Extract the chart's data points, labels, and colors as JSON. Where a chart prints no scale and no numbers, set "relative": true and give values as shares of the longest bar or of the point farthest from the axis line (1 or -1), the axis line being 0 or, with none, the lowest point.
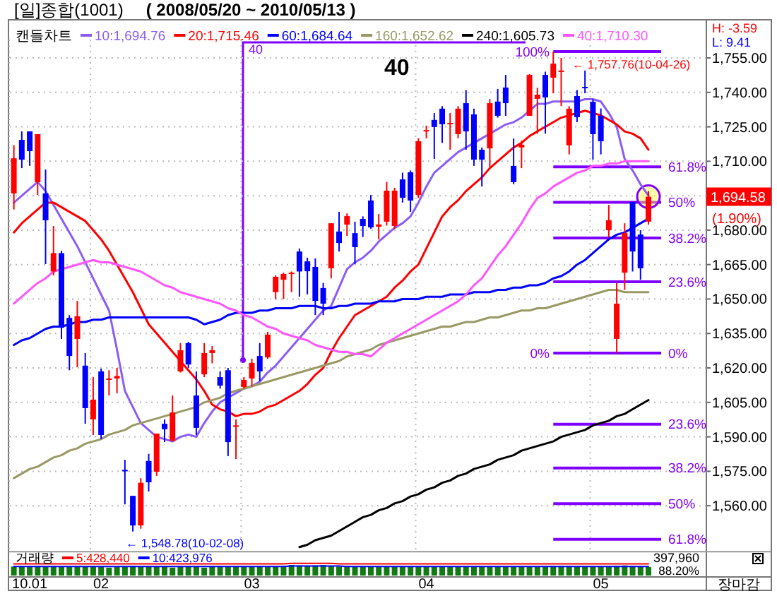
{
  "chart_data": [
    {
      "type": "candlestick",
      "title": "[일]종합(1001)",
      "subtitle": "( 2008/05/20 ~ 2010/05/13 )",
      "legend_title": "캔들차트",
      "legend": "top",
      "grid": true,
      "tick_labels": "y",
      "categories": [
        null,
        null,
        "10.01",
        null,
        null,
        null,
        null,
        null,
        null,
        null,
        null,
        "02",
        null,
        null,
        null,
        null,
        null,
        null,
        null,
        null,
        null,
        null,
        null,
        null,
        null,
        null,
        null,
        null,
        null,
        null,
        "03",
        null,
        null,
        null,
        null,
        null,
        null,
        null,
        null,
        null,
        null,
        null,
        null,
        null,
        null,
        null,
        null,
        null,
        null,
        null,
        null,
        null,
        "04",
        null,
        null,
        null,
        null,
        null,
        null,
        null,
        null,
        null,
        null,
        null,
        null,
        null,
        null,
        null,
        null,
        null,
        null,
        null,
        null,
        null,
        "05",
        null,
        null,
        null,
        null,
        null,
        null
      ],
      "ohlc": [
        [
          1696,
          1717,
          1689,
          1711.3
        ],
        [
          1719.3,
          1723,
          1707,
          1710.7
        ],
        [
          1723,
          1723,
          1708,
          1714.4
        ],
        [
          1700.9,
          1721.8,
          1695.3,
          1721.8
        ],
        [
          1696,
          1706.4,
          1665.2,
          1684.3
        ],
        [
          1662,
          1681.8,
          1660.3,
          1670
        ],
        [
          1670,
          1671,
          1632.6,
          1637.5
        ],
        [
          1641.8,
          1643,
          1619,
          1625.2
        ],
        [
          1632.6,
          1649.2,
          1620.3,
          1642.5
        ],
        [
          1621,
          1626.5,
          1595.7,
          1602.5
        ],
        [
          1597.6,
          1616,
          1590.8,
          1606.2
        ],
        [
          1618.5,
          1619.7,
          1589,
          1590.8
        ],
        [
          1614.8,
          1619,
          1608,
          1615.4
        ],
        [
          1615.4,
          1620,
          1609,
          1616.5
        ],
        [
          1575.6,
          1580,
          1560.6,
          1575
        ],
        [
          1564.3,
          1564.3,
          1548.78,
          1551.4
        ],
        [
          1551.4,
          1572,
          1550,
          1570
        ],
        [
          1579.5,
          1582.6,
          1566.2,
          1570.2
        ],
        [
          1574.8,
          1591.4,
          1573,
          1591.4
        ],
        [
          1595.7,
          1597.6,
          1587.7,
          1593.3
        ],
        [
          1588.3,
          1608,
          1588,
          1600.6
        ],
        [
          1618.5,
          1630.8,
          1618,
          1627.7
        ],
        [
          1630.8,
          1631.4,
          1620,
          1621.5
        ],
        [
          1608,
          1618.5,
          1590.8,
          1593.9
        ],
        [
          1617.2,
          1630.8,
          1616,
          1626.5
        ],
        [
          1626.5,
          1629.5,
          1622,
          1627.7
        ],
        [
          1616,
          1618.5,
          1611,
          1612.3
        ],
        [
          1619,
          1620,
          1581.6,
          1587.7
        ],
        [
          1594.5,
          1597.6,
          1580.3,
          1595
        ],
        [
          1611.7,
          1616,
          1611,
          1614.8
        ],
        [
          1615.4,
          1624,
          1612,
          1622.2
        ],
        [
          1625.2,
          1630.8,
          1614.2,
          1618.5
        ],
        [
          1624.6,
          1635.7,
          1624,
          1634.5
        ],
        [
          1653,
          1660.3,
          1650,
          1659.7
        ],
        [
          1658.4,
          1661.5,
          1650,
          1660.9
        ],
        [
          1661,
          1662,
          1653,
          1661.5
        ],
        [
          1670.7,
          1672,
          1651,
          1662
        ],
        [
          1666.4,
          1668,
          1652,
          1662.1
        ],
        [
          1664,
          1667.7,
          1643,
          1649.2
        ],
        [
          1654.8,
          1657,
          1643,
          1648
        ],
        [
          1663.4,
          1683,
          1659,
          1683
        ],
        [
          1679.4,
          1688,
          1670.7,
          1674.4
        ],
        [
          1682.4,
          1687.3,
          1677.5,
          1686.1
        ],
        [
          1678.7,
          1683.7,
          1665.2,
          1672.6
        ],
        [
          1684.9,
          1686,
          1677,
          1681.8
        ],
        [
          1692.9,
          1695.3,
          1680.6,
          1681.2
        ],
        [
          1681.5,
          1687,
          1676,
          1682.5
        ],
        [
          1683.7,
          1701,
          1682,
          1697.2
        ],
        [
          1681.8,
          1698.4,
          1680.6,
          1697.2
        ],
        [
          1702.1,
          1705,
          1692,
          1694.1
        ],
        [
          1705.2,
          1706,
          1688,
          1692.9
        ],
        [
          1695.3,
          1720,
          1694,
          1718.7
        ],
        [
          1723,
          1725.5,
          1720,
          1723.6
        ],
        [
          1728,
          1731,
          1711,
          1724.9
        ],
        [
          1732.9,
          1734,
          1718,
          1726.1
        ],
        [
          1726.5,
          1731,
          1715,
          1726.7
        ],
        [
          1721.8,
          1734,
          1720,
          1732.9
        ],
        [
          1735.3,
          1741,
          1715,
          1723
        ],
        [
          1730.4,
          1732.9,
          1708,
          1710.7
        ],
        [
          1715,
          1716,
          1699,
          1710.7
        ],
        [
          1715.6,
          1737,
          1707,
          1735.3
        ],
        [
          1736,
          1741.5,
          1729,
          1729.8
        ],
        [
          1742.1,
          1747.6,
          1729.8,
          1735.3
        ],
        [
          1708,
          1719.9,
          1700,
          1700.9
        ],
        [
          1716,
          1719,
          1707,
          1717.2
        ],
        [
          1729.8,
          1748,
          1729.8,
          1747.6
        ],
        [
          1737.2,
          1742,
          1722,
          1739
        ],
        [
          1747.6,
          1749,
          1722,
          1737.8
        ],
        [
          1746.4,
          1757.76,
          1739.6,
          1752.5
        ],
        [
          1749.2,
          1755,
          1734,
          1749.5
        ],
        [
          1716.9,
          1734,
          1713,
          1732.9
        ],
        [
          1738.4,
          1741,
          1727,
          1729.2
        ],
        [
          1742.4,
          1749.5,
          1739.6,
          1742.1
        ],
        [
          1735.9,
          1737,
          1710.7,
          1721.8
        ],
        [
          1729.8,
          1733,
          1713,
          1718.7
        ],
        [
          1680,
          1691,
          1677,
          1684.3
        ],
        [
          1632.6,
          1657,
          1626.47,
          1648
        ],
        [
          1661.5,
          1683,
          1654,
          1678.7
        ],
        [
          1692.3,
          1692.3,
          1662,
          1670.7
        ],
        [
          1678.1,
          1680,
          1658.4,
          1663.4
        ],
        [
          1683.7,
          1697,
          1682.4,
          1694.58
        ]
      ],
      "ylim": [
        1540,
        1763
      ],
      "yticks": [
        {
          "value": 1560,
          "label": "1,560.00"
        },
        {
          "value": 1575,
          "label": "1,575.00"
        },
        {
          "value": 1590,
          "label": "1,590.00"
        },
        {
          "value": 1605,
          "label": "1,605.00"
        },
        {
          "value": 1620,
          "label": "1,620.00"
        },
        {
          "value": 1635,
          "label": "1,635.00"
        },
        {
          "value": 1650,
          "label": "1,650.00"
        },
        {
          "value": 1665,
          "label": "1,665.00"
        },
        {
          "value": 1680,
          "label": "1,680.00"
        },
        {
          "value": 1695,
          "label": null
        },
        {
          "value": 1710,
          "label": "1,710.00"
        },
        {
          "value": 1725,
          "label": "1,725.00"
        },
        {
          "value": 1740,
          "label": "1,740.00"
        },
        {
          "value": 1755,
          "label": "1,755.00"
        }
      ],
      "series": [
        {
          "type": "line",
          "name": "10:1,694.76",
          "color": "#8b5cf6",
          "values": [
            1692,
            1695,
            1698,
            1701,
            1697,
            1691,
            1685,
            1679,
            1673,
            1666,
            1659,
            1652,
            1645,
            1628,
            1610,
            1603,
            1596,
            1593,
            1590,
            1589,
            1588,
            1590,
            1591,
            1590,
            1596,
            1601,
            1605,
            1607,
            1609,
            1611,
            1612,
            1614,
            1618,
            1621,
            1625,
            1629,
            1633,
            1637,
            1641,
            1645,
            1647,
            1655,
            1663,
            1666,
            1668,
            1671,
            1675,
            1678,
            1681,
            1683,
            1686,
            1692,
            1699,
            1705,
            1708,
            1711,
            1714,
            1716,
            1718,
            1720,
            1722,
            1724,
            1726,
            1727,
            1729,
            1732,
            1735,
            1735,
            1736,
            1736,
            1736,
            1736,
            1737,
            1737,
            1736,
            1731,
            1725,
            1711,
            1706,
            1700,
            1695
          ]
        },
        {
          "type": "line",
          "name": "20:1,715.46",
          "color": "#ff0000",
          "values": [
            1679,
            1683,
            1686,
            1689,
            1692,
            1692,
            1690,
            1688,
            1686,
            1684,
            1680,
            1676,
            1671,
            1665,
            1659,
            1653,
            1646,
            1639,
            1635,
            1631,
            1627,
            1623,
            1619,
            1615,
            1610,
            1604,
            1602,
            1601,
            1599,
            1600,
            1600,
            1601,
            1603,
            1604,
            1606,
            1608,
            1610,
            1613,
            1617,
            1620,
            1627,
            1633,
            1638,
            1643,
            1645,
            1647,
            1649,
            1651,
            1655,
            1658,
            1662,
            1665,
            1672,
            1679,
            1686,
            1690,
            1693,
            1697,
            1700,
            1703,
            1707,
            1710,
            1713,
            1716,
            1718,
            1721,
            1723,
            1725,
            1727,
            1729,
            1730,
            1731,
            1732,
            1731,
            1730,
            1728,
            1726,
            1723,
            1722,
            1720,
            1715
          ]
        },
        {
          "type": "line",
          "name": "60:1,684.64",
          "color": "#0000ff",
          "values": [
            1630,
            1632,
            1633,
            1635,
            1637,
            1638,
            1638,
            1639,
            1640,
            1640,
            1641,
            1641,
            1642,
            1642,
            1642,
            1642,
            1642,
            1642,
            1642,
            1642,
            1642,
            1642,
            1642,
            1641,
            1639,
            1640,
            1641,
            1643,
            1644,
            1644,
            1644,
            1645,
            1645,
            1646,
            1646,
            1646,
            1647,
            1647,
            1647,
            1646,
            1646,
            1647,
            1647,
            1648,
            1648,
            1648,
            1649,
            1649,
            1649,
            1650,
            1650,
            1650,
            1651,
            1651,
            1651,
            1652,
            1652,
            1652,
            1653,
            1653,
            1653,
            1654,
            1654,
            1655,
            1655,
            1656,
            1656,
            1657,
            1659,
            1660,
            1662,
            1665,
            1667,
            1670,
            1673,
            1676,
            1678,
            1679,
            1681,
            1683,
            1685
          ]
        },
        {
          "type": "line",
          "name": "160:1,652.62",
          "color": "#999966",
          "values": [
            1572,
            1574,
            1576,
            1577,
            1579,
            1581,
            1582,
            1584,
            1585,
            1587,
            1588,
            1589,
            1591,
            1592,
            1593,
            1595,
            1596,
            1597,
            1598,
            1599,
            1600,
            1601,
            1602,
            1603,
            1605,
            1606,
            1607,
            1609,
            1610,
            1611,
            1612,
            1613,
            1614,
            1615,
            1616,
            1617,
            1618,
            1619,
            1620,
            1621,
            1622,
            1623,
            1625,
            1626,
            1627,
            1628,
            1630,
            1631,
            1632,
            1633,
            1634,
            1635,
            1636,
            1637,
            1638,
            1638,
            1639,
            1640,
            1640,
            1641,
            1642,
            1642,
            1643,
            1644,
            1645,
            1645,
            1646,
            1646,
            1647,
            1648,
            1649,
            1650,
            1651,
            1652,
            1653,
            1654,
            1654,
            1653,
            1653,
            1653,
            1653
          ]
        },
        {
          "type": "line",
          "name": "240:1,605.73",
          "color": "#000000",
          "values": [
            null,
            null,
            null,
            null,
            null,
            null,
            null,
            null,
            null,
            null,
            null,
            null,
            null,
            null,
            null,
            null,
            null,
            null,
            null,
            null,
            null,
            null,
            null,
            null,
            null,
            null,
            null,
            null,
            null,
            null,
            null,
            null,
            null,
            null,
            null,
            null,
            1542,
            1543,
            1545,
            1546,
            1547,
            1549,
            1551,
            1553,
            1555,
            1556,
            1558,
            1559,
            1561,
            1562,
            1564,
            1565,
            1567,
            1568,
            1570,
            1571,
            1573,
            1574,
            1576,
            1577,
            1578,
            1580,
            1581,
            1582,
            1584,
            1585,
            1586,
            1587,
            1588,
            1590,
            1591,
            1592,
            1593,
            1595,
            1596,
            1597,
            1599,
            1600,
            1602,
            1604,
            1606
          ]
        },
        {
          "type": "line",
          "name": "40:1,710.30",
          "color": "#ff55ff",
          "values": [
            1648,
            1651,
            1654,
            1657,
            1659,
            1662,
            1663,
            1664,
            1665,
            1666,
            1667,
            1666,
            1666,
            1665,
            1664,
            1663,
            1662,
            1660,
            1658,
            1656,
            1655,
            1653,
            1652,
            1651,
            1650,
            1649,
            1648,
            1646,
            1645,
            1643,
            1642,
            1640,
            1638,
            1637,
            1635,
            1634,
            1633,
            1632,
            1630,
            1629,
            1628,
            1627,
            1627,
            1626,
            1626,
            1625,
            1628,
            1631,
            1633,
            1635,
            1637,
            1639,
            1641,
            1643,
            1645,
            1647,
            1649,
            1652,
            1656,
            1659,
            1664,
            1669,
            1673,
            1678,
            1683,
            1689,
            1694,
            1696,
            1699,
            1701,
            1703,
            1705,
            1706,
            1708,
            1708,
            1709,
            1709,
            1710,
            1710,
            1710,
            1710
          ]
        }
      ],
      "ref_lines": [
        {
          "axis": "y",
          "value": 1757.76,
          "color": "#8000ff"
        },
        {
          "axis": "y",
          "value": 1707.6,
          "color": "#8000ff"
        },
        {
          "axis": "y",
          "value": 1692.1,
          "color": "#8000ff"
        },
        {
          "axis": "y",
          "value": 1676.6,
          "color": "#8000ff"
        },
        {
          "axis": "y",
          "value": 1657.5,
          "color": "#8000ff"
        },
        {
          "axis": "y",
          "value": 1626.47,
          "color": "#8000ff"
        },
        {
          "axis": "y",
          "value": 1595.5,
          "color": "#8000ff"
        },
        {
          "axis": "y",
          "value": 1576.4,
          "color": "#8000ff"
        },
        {
          "axis": "y",
          "value": 1560.9,
          "color": "#8000ff"
        },
        {
          "axis": "y",
          "value": 1545.4,
          "color": "#8000ff"
        }
      ],
      "annotations": [
        "40",
        "40",
        {
          "text": "← 1,757.76(10-04-26)",
          "y": 1757.76
        },
        "← 1,548.78(10-02-08)",
        "H: -3.59",
        "L: 9.41",
        "1,694.58",
        "(1.90%)",
        "100%",
        "61.8%",
        "50%",
        "38.2%",
        "23.6%",
        "0%",
        "0%",
        "23.6%",
        "38.2%",
        "50%",
        "61.8%"
      ]
    },
    {
      "type": "bar",
      "legend_title": "거래량",
      "legend": "top left",
      "relative": true,
      "tick_labels": "x",
      "color": "#127a12",
      "categories": [
        null,
        null,
        "10.01",
        null,
        null,
        null,
        null,
        null,
        null,
        null,
        null,
        "02",
        null,
        null,
        null,
        null,
        null,
        null,
        null,
        null,
        null,
        null,
        null,
        null,
        null,
        null,
        null,
        null,
        null,
        null,
        "03",
        null,
        null,
        null,
        null,
        null,
        null,
        null,
        null,
        null,
        null,
        null,
        null,
        null,
        null,
        null,
        null,
        null,
        null,
        null,
        null,
        null,
        "04",
        null,
        null,
        null,
        null,
        null,
        null,
        null,
        null,
        null,
        null,
        null,
        null,
        null,
        null,
        null,
        null,
        null,
        null,
        null,
        null,
        null,
        "05",
        null,
        null,
        null,
        null,
        null,
        null
      ],
      "values": [
        0.74,
        0.7,
        0.74,
        0.78,
        0.74,
        0.78,
        0.74,
        0.7,
        0.74,
        0.7,
        0.74,
        0.7,
        0.65,
        0.7,
        0.74,
        0.78,
        0.74,
        0.7,
        0.7,
        0.7,
        0.65,
        0.7,
        0.7,
        0.7,
        0.65,
        0.7,
        0.7,
        0.7,
        0.74,
        0.7,
        0.7,
        0.74,
        0.7,
        0.74,
        0.78,
        0.87,
        0.83,
        0.78,
        0.83,
        0.87,
        0.78,
        0.74,
        0.78,
        0.74,
        0.7,
        0.7,
        0.74,
        0.7,
        0.7,
        0.7,
        0.7,
        0.7,
        0.74,
        0.7,
        0.7,
        0.74,
        0.7,
        0.7,
        0.7,
        0.74,
        0.74,
        0.7,
        0.7,
        0.74,
        0.7,
        0.7,
        0.74,
        0.74,
        0.78,
        0.78,
        0.78,
        0.74,
        0.7,
        0.74,
        0.7,
        0.74,
        0.78,
        0.83,
        0.78,
        0.74,
        0.7
      ],
      "series": [
        {
          "type": "line",
          "name": "5:428,440",
          "color": "#ff0000",
          "values": [
            0.96,
            0.96,
            0.96,
            0.96,
            0.96,
            0.96,
            0.96,
            0.96,
            0.96,
            0.96,
            0.96,
            0.96,
            0.96,
            0.96,
            0.96,
            0.96,
            0.96,
            0.96,
            0.96,
            0.96,
            0.96,
            0.96,
            0.96,
            0.96,
            0.96,
            0.96,
            0.96,
            0.96,
            0.96,
            0.96,
            0.96,
            0.96,
            0.96,
            0.96,
            0.96,
            1,
            1,
            1,
            1,
            1,
            1,
            0.96,
            0.96,
            0.96,
            0.96,
            0.96,
            0.96,
            0.96,
            0.96,
            0.96,
            0.96,
            0.96,
            0.96,
            0.96,
            0.96,
            0.96,
            0.96,
            0.96,
            0.96,
            0.96,
            0.96,
            0.96,
            0.96,
            0.96,
            0.96,
            0.96,
            0.96,
            0.96,
            0.96,
            0.96,
            0.96,
            0.96,
            0.96,
            0.96,
            0.96,
            0.96,
            0.96,
            0.96,
            0.96,
            0.96,
            0.96
          ]
        },
        {
          "type": "line",
          "name": "10:423,976",
          "color": "#0000ff",
          "values": [
            0.74,
            0.74,
            0.74,
            0.74,
            0.74,
            0.74,
            0.74,
            0.74,
            0.74,
            0.74,
            0.74,
            0.74,
            0.74,
            0.74,
            0.74,
            0.74,
            0.74,
            0.74,
            0.74,
            0.74,
            0.74,
            0.74,
            0.74,
            0.74,
            0.74,
            0.74,
            0.74,
            0.74,
            0.74,
            0.74,
            0.74,
            0.74,
            0.74,
            0.74,
            0.74,
            0.78,
            0.78,
            0.78,
            0.78,
            0.78,
            0.78,
            0.78,
            0.74,
            0.74,
            0.74,
            0.74,
            0.74,
            0.74,
            0.74,
            0.74,
            0.74,
            0.74,
            0.74,
            0.74,
            0.74,
            0.74,
            0.74,
            0.74,
            0.74,
            0.74,
            0.74,
            0.74,
            0.74,
            0.74,
            0.74,
            0.74,
            0.74,
            0.74,
            0.74,
            0.74,
            0.74,
            0.74,
            0.74,
            0.74,
            0.74,
            0.74,
            0.74,
            0.74,
            0.74,
            0.74,
            0.74
          ]
        }
      ],
      "annotations": [
        "397,960",
        "88.20%",
        "장마감"
      ]
    }
  ]
}
